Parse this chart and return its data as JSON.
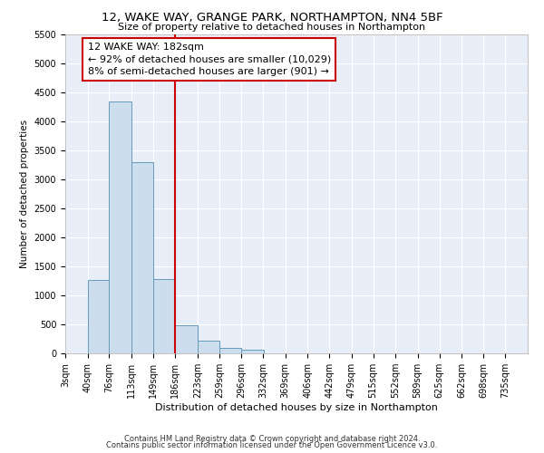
{
  "title": "12, WAKE WAY, GRANGE PARK, NORTHAMPTON, NN4 5BF",
  "subtitle": "Size of property relative to detached houses in Northampton",
  "xlabel": "Distribution of detached houses by size in Northampton",
  "ylabel": "Number of detached properties",
  "bar_color": "#ccdded",
  "bar_edge_color": "#6699bb",
  "background_color": "#e8eef8",
  "grid_color": "#ffffff",
  "annotation_line_color": "#cc0000",
  "annotation_box_color": "#cc0000",
  "annotation_line1": "12 WAKE WAY: 182sqm",
  "annotation_line2": "← 92% of detached houses are smaller (10,029)",
  "annotation_line3": "8% of semi-detached houses are larger (901) →",
  "property_size_idx": 5,
  "footer_line1": "Contains HM Land Registry data © Crown copyright and database right 2024.",
  "footer_line2": "Contains public sector information licensed under the Open Government Licence v3.0.",
  "bin_labels": [
    "3sqm",
    "40sqm",
    "76sqm",
    "113sqm",
    "149sqm",
    "186sqm",
    "223sqm",
    "259sqm",
    "296sqm",
    "332sqm",
    "369sqm",
    "406sqm",
    "442sqm",
    "479sqm",
    "515sqm",
    "552sqm",
    "589sqm",
    "625sqm",
    "662sqm",
    "698sqm",
    "735sqm"
  ],
  "bin_edges": [
    3,
    40,
    76,
    113,
    149,
    186,
    223,
    259,
    296,
    332,
    369,
    406,
    442,
    479,
    515,
    552,
    589,
    625,
    662,
    698,
    735
  ],
  "bar_heights": [
    0,
    1270,
    4330,
    3300,
    1280,
    490,
    220,
    90,
    60,
    0,
    0,
    0,
    0,
    0,
    0,
    0,
    0,
    0,
    0,
    0
  ],
  "ylim": [
    0,
    5500
  ],
  "yticks": [
    0,
    500,
    1000,
    1500,
    2000,
    2500,
    3000,
    3500,
    4000,
    4500,
    5000,
    5500
  ],
  "title_fontsize": 9.5,
  "subtitle_fontsize": 8,
  "ylabel_fontsize": 7.5,
  "xlabel_fontsize": 8,
  "tick_fontsize": 7,
  "footer_fontsize": 6,
  "annotation_fontsize": 8
}
